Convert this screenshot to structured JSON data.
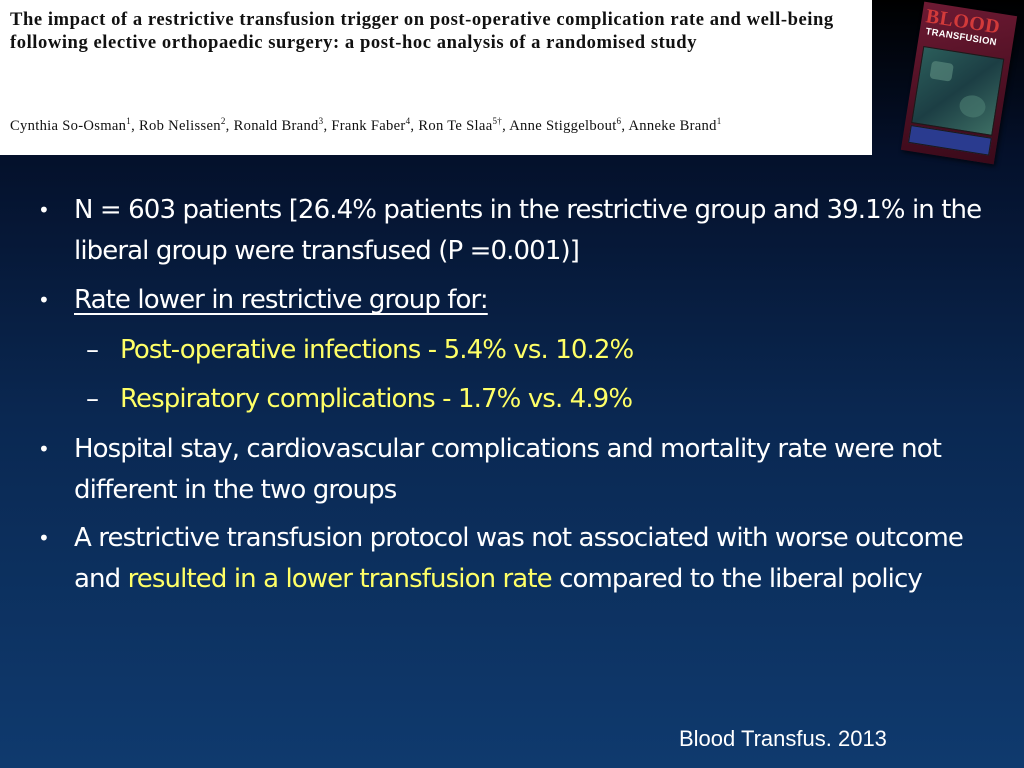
{
  "header": {
    "title": "The impact of a restrictive transfusion trigger on post-operative complication rate and well-being following elective orthopaedic surgery: a post-hoc analysis of a randomised study",
    "authors": [
      {
        "name": "Cynthia So-Osman",
        "sup": "1"
      },
      {
        "name": "Rob Nelissen",
        "sup": "2"
      },
      {
        "name": "Ronald Brand",
        "sup": "3"
      },
      {
        "name": "Frank Faber",
        "sup": "4"
      },
      {
        "name": "Ron Te Slaa",
        "sup": "5†"
      },
      {
        "name": "Anne Stiggelbout",
        "sup": "6"
      },
      {
        "name": "Anneke Brand",
        "sup": "1"
      }
    ]
  },
  "journal_cover": {
    "logo_line1": "BLOOD",
    "logo_line2": "TRANSFUSION"
  },
  "bullets": [
    {
      "text": "N =  603 patients [26.4% patients in the restrictive group and 39.1% in the liberal group were transfused (P =0.001)]"
    },
    {
      "text": "Rate lower in restrictive group for:"
    },
    {
      "text": "Hospital stay, cardiovascular complications and mortality rate were not different in the two groups"
    },
    {
      "text_before": "A restrictive transfusion protocol was not associated with worse outcome and ",
      "highlight": "resulted in a lower transfusion rate",
      "text_after": " compared to the liberal policy"
    }
  ],
  "sub_bullets": [
    {
      "dash": "–",
      "text": "Post-operative infections - 5.4% vs. 10.2%"
    },
    {
      "dash": "–",
      "text": "Respiratory complications - 1.7% vs. 4.9%"
    }
  ],
  "bullet_symbol": "•",
  "citation": "Blood Transfus. 2013",
  "colors": {
    "highlight": "#ffff66",
    "text": "#ffffff",
    "background_bottom": "#0f3a6e"
  }
}
